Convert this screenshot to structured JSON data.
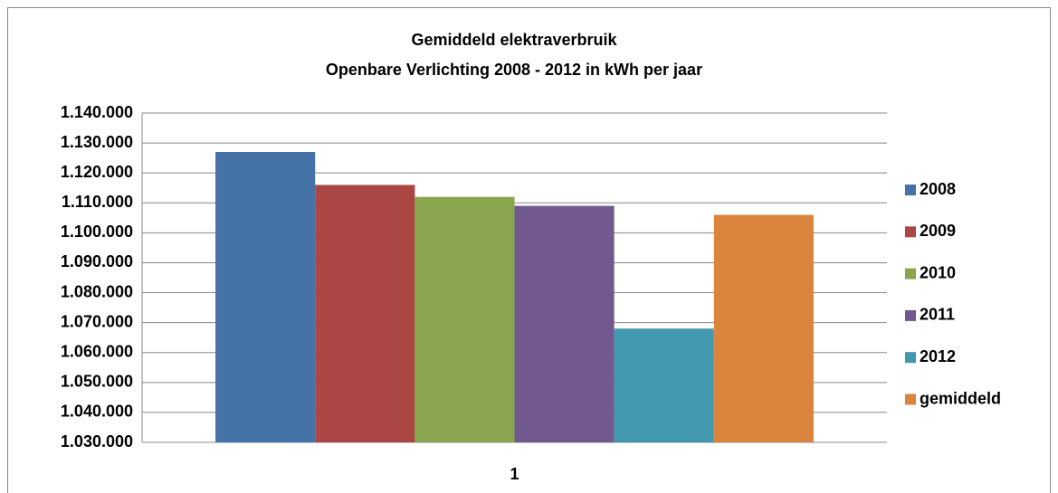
{
  "chart_data": {
    "type": "bar",
    "title": "Gemiddeld elektraverbruik",
    "subtitle": "Openbare Verlichting 2008 - 2012 in kWh per jaar",
    "categories": [
      "1"
    ],
    "series": [
      {
        "name": "2008",
        "color": "#4572a7",
        "values": [
          1127000
        ]
      },
      {
        "name": "2009",
        "color": "#aa4643",
        "values": [
          1116000
        ]
      },
      {
        "name": "2010",
        "color": "#89a54e",
        "values": [
          1112000
        ]
      },
      {
        "name": "2011",
        "color": "#71588f",
        "values": [
          1109000
        ]
      },
      {
        "name": "2012",
        "color": "#4198af",
        "values": [
          1068000
        ]
      },
      {
        "name": "gemiddeld",
        "color": "#db843d",
        "values": [
          1106000
        ]
      }
    ],
    "ylim": [
      1030000,
      1140000
    ],
    "yticks": [
      {
        "value": 1030000,
        "label": "1.030.000"
      },
      {
        "value": 1040000,
        "label": "1.040.000"
      },
      {
        "value": 1050000,
        "label": "1.050.000"
      },
      {
        "value": 1060000,
        "label": "1.060.000"
      },
      {
        "value": 1070000,
        "label": "1.070.000"
      },
      {
        "value": 1080000,
        "label": "1.080.000"
      },
      {
        "value": 1090000,
        "label": "1.090.000"
      },
      {
        "value": 1100000,
        "label": "1.100.000"
      },
      {
        "value": 1110000,
        "label": "1.110.000"
      },
      {
        "value": 1120000,
        "label": "1.120.000"
      },
      {
        "value": 1130000,
        "label": "1.130.000"
      },
      {
        "value": 1140000,
        "label": "1.140.000"
      }
    ],
    "grid": true,
    "legend": "right"
  }
}
